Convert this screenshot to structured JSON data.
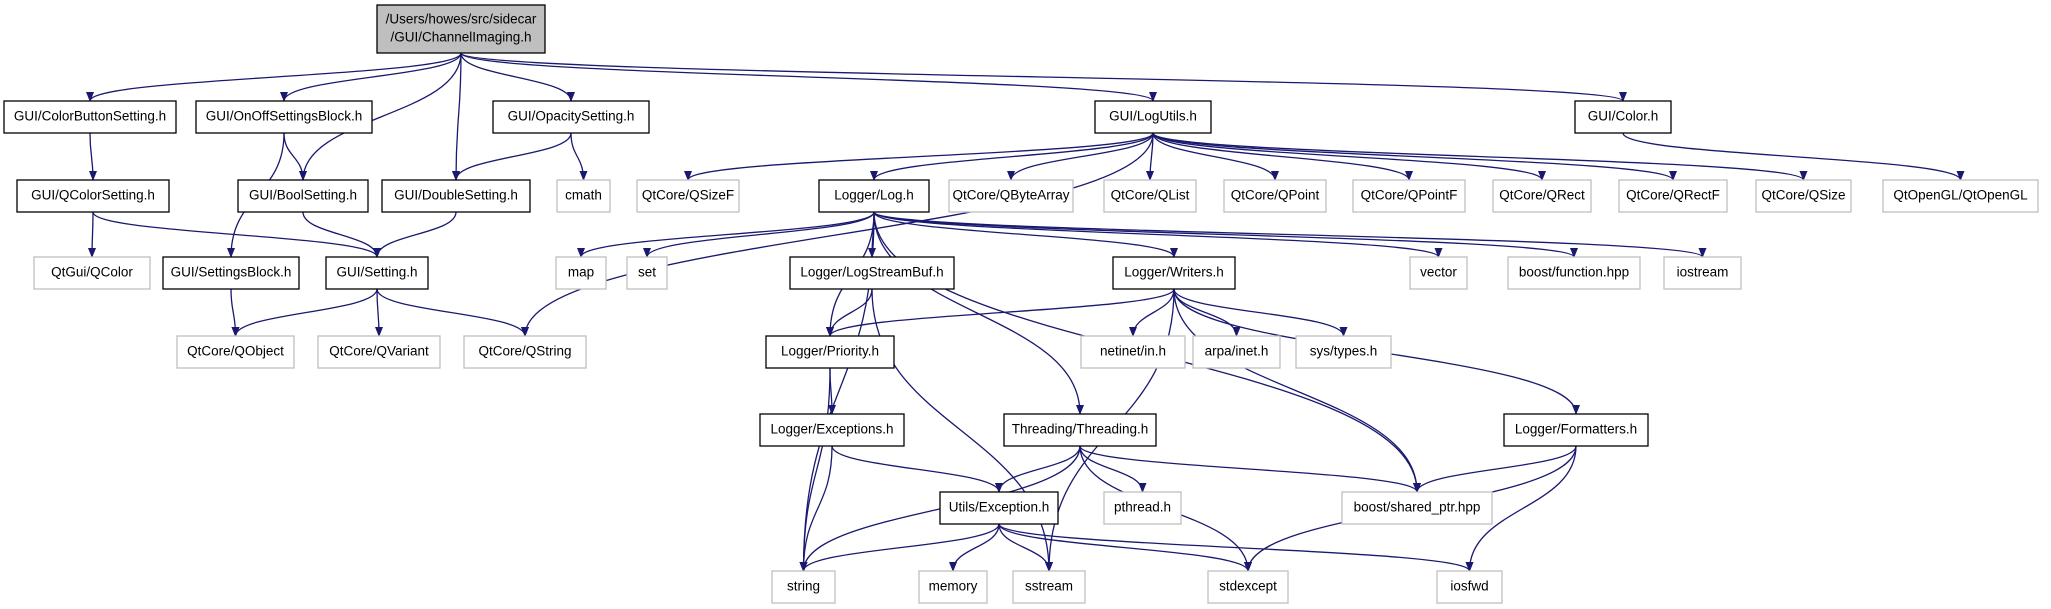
{
  "colors": {
    "edge": "#191970",
    "root_fill": "#bfbfbf",
    "node_border": "#000000",
    "external_border": "#bfbfbf",
    "background": "#ffffff"
  },
  "nodes": [
    {
      "id": "root",
      "lines": [
        "/Users/howes/src/sidecar",
        "/GUI/ChannelImaging.h"
      ],
      "kind": "root"
    },
    {
      "id": "colorbuttonsetting",
      "lines": [
        "GUI/ColorButtonSetting.h"
      ],
      "kind": "file"
    },
    {
      "id": "onoffsettingsblock",
      "lines": [
        "GUI/OnOffSettingsBlock.h"
      ],
      "kind": "file"
    },
    {
      "id": "opacitysetting",
      "lines": [
        "GUI/OpacitySetting.h"
      ],
      "kind": "file"
    },
    {
      "id": "logutils",
      "lines": [
        "GUI/LogUtils.h"
      ],
      "kind": "file"
    },
    {
      "id": "color",
      "lines": [
        "GUI/Color.h"
      ],
      "kind": "file"
    },
    {
      "id": "qcolorsetting",
      "lines": [
        "GUI/QColorSetting.h"
      ],
      "kind": "file"
    },
    {
      "id": "boolsetting",
      "lines": [
        "GUI/BoolSetting.h"
      ],
      "kind": "file"
    },
    {
      "id": "doublesetting",
      "lines": [
        "GUI/DoubleSetting.h"
      ],
      "kind": "file"
    },
    {
      "id": "cmath",
      "lines": [
        "cmath"
      ],
      "kind": "external"
    },
    {
      "id": "qsizef",
      "lines": [
        "QtCore/QSizeF"
      ],
      "kind": "external"
    },
    {
      "id": "log",
      "lines": [
        "Logger/Log.h"
      ],
      "kind": "file"
    },
    {
      "id": "qbytearray",
      "lines": [
        "QtCore/QByteArray"
      ],
      "kind": "external"
    },
    {
      "id": "qlist",
      "lines": [
        "QtCore/QList"
      ],
      "kind": "external"
    },
    {
      "id": "qpoint",
      "lines": [
        "QtCore/QPoint"
      ],
      "kind": "external"
    },
    {
      "id": "qpointf",
      "lines": [
        "QtCore/QPointF"
      ],
      "kind": "external"
    },
    {
      "id": "qrect",
      "lines": [
        "QtCore/QRect"
      ],
      "kind": "external"
    },
    {
      "id": "qrectf",
      "lines": [
        "QtCore/QRectF"
      ],
      "kind": "external"
    },
    {
      "id": "qsize",
      "lines": [
        "QtCore/QSize"
      ],
      "kind": "external"
    },
    {
      "id": "qopengl",
      "lines": [
        "QtOpenGL/QtOpenGL"
      ],
      "kind": "external"
    },
    {
      "id": "qcolor",
      "lines": [
        "QtGui/QColor"
      ],
      "kind": "external"
    },
    {
      "id": "settingsblock",
      "lines": [
        "GUI/SettingsBlock.h"
      ],
      "kind": "file"
    },
    {
      "id": "setting",
      "lines": [
        "GUI/Setting.h"
      ],
      "kind": "file"
    },
    {
      "id": "map",
      "lines": [
        "map"
      ],
      "kind": "external"
    },
    {
      "id": "set",
      "lines": [
        "set"
      ],
      "kind": "external"
    },
    {
      "id": "logstreambuf",
      "lines": [
        "Logger/LogStreamBuf.h"
      ],
      "kind": "file"
    },
    {
      "id": "writers",
      "lines": [
        "Logger/Writers.h"
      ],
      "kind": "file"
    },
    {
      "id": "vector",
      "lines": [
        "vector"
      ],
      "kind": "external"
    },
    {
      "id": "function",
      "lines": [
        "boost/function.hpp"
      ],
      "kind": "external"
    },
    {
      "id": "iostream",
      "lines": [
        "iostream"
      ],
      "kind": "external"
    },
    {
      "id": "qobject",
      "lines": [
        "QtCore/QObject"
      ],
      "kind": "external"
    },
    {
      "id": "qvariant",
      "lines": [
        "QtCore/QVariant"
      ],
      "kind": "external"
    },
    {
      "id": "qstring",
      "lines": [
        "QtCore/QString"
      ],
      "kind": "external"
    },
    {
      "id": "priority",
      "lines": [
        "Logger/Priority.h"
      ],
      "kind": "file"
    },
    {
      "id": "netinet",
      "lines": [
        "netinet/in.h"
      ],
      "kind": "external"
    },
    {
      "id": "arpainet",
      "lines": [
        "arpa/inet.h"
      ],
      "kind": "external"
    },
    {
      "id": "systypes",
      "lines": [
        "sys/types.h"
      ],
      "kind": "external"
    },
    {
      "id": "exceptions",
      "lines": [
        "Logger/Exceptions.h"
      ],
      "kind": "file"
    },
    {
      "id": "threading",
      "lines": [
        "Threading/Threading.h"
      ],
      "kind": "file"
    },
    {
      "id": "formatters",
      "lines": [
        "Logger/Formatters.h"
      ],
      "kind": "file"
    },
    {
      "id": "utilsexception",
      "lines": [
        "Utils/Exception.h"
      ],
      "kind": "file"
    },
    {
      "id": "pthread",
      "lines": [
        "pthread.h"
      ],
      "kind": "external"
    },
    {
      "id": "sharedptr",
      "lines": [
        "boost/shared_ptr.hpp"
      ],
      "kind": "external"
    },
    {
      "id": "string",
      "lines": [
        "string"
      ],
      "kind": "external"
    },
    {
      "id": "memory",
      "lines": [
        "memory"
      ],
      "kind": "external"
    },
    {
      "id": "sstream",
      "lines": [
        "sstream"
      ],
      "kind": "external"
    },
    {
      "id": "stdexcept",
      "lines": [
        "stdexcept"
      ],
      "kind": "external"
    },
    {
      "id": "iosfwd",
      "lines": [
        "iosfwd"
      ],
      "kind": "external"
    }
  ],
  "edges": [
    [
      "root",
      "colorbuttonsetting"
    ],
    [
      "root",
      "onoffsettingsblock"
    ],
    [
      "root",
      "boolsetting"
    ],
    [
      "root",
      "doublesetting"
    ],
    [
      "root",
      "opacitysetting"
    ],
    [
      "root",
      "logutils"
    ],
    [
      "root",
      "color"
    ],
    [
      "colorbuttonsetting",
      "qcolorsetting"
    ],
    [
      "qcolorsetting",
      "qcolor"
    ],
    [
      "qcolorsetting",
      "setting"
    ],
    [
      "onoffsettingsblock",
      "boolsetting"
    ],
    [
      "onoffsettingsblock",
      "settingsblock"
    ],
    [
      "opacitysetting",
      "doublesetting"
    ],
    [
      "opacitysetting",
      "cmath"
    ],
    [
      "boolsetting",
      "setting"
    ],
    [
      "doublesetting",
      "setting"
    ],
    [
      "settingsblock",
      "qobject"
    ],
    [
      "setting",
      "qobject"
    ],
    [
      "setting",
      "qvariant"
    ],
    [
      "setting",
      "qstring"
    ],
    [
      "logutils",
      "qsizef"
    ],
    [
      "logutils",
      "log"
    ],
    [
      "logutils",
      "qbytearray"
    ],
    [
      "logutils",
      "qlist"
    ],
    [
      "logutils",
      "qpoint"
    ],
    [
      "logutils",
      "qpointf"
    ],
    [
      "logutils",
      "qrect"
    ],
    [
      "logutils",
      "qrectf"
    ],
    [
      "logutils",
      "qsize"
    ],
    [
      "logutils",
      "qstring"
    ],
    [
      "color",
      "qopengl"
    ],
    [
      "log",
      "map"
    ],
    [
      "log",
      "set"
    ],
    [
      "log",
      "logstreambuf"
    ],
    [
      "log",
      "writers"
    ],
    [
      "log",
      "vector"
    ],
    [
      "log",
      "function"
    ],
    [
      "log",
      "iostream"
    ],
    [
      "log",
      "priority"
    ],
    [
      "log",
      "string"
    ],
    [
      "log",
      "threading"
    ],
    [
      "log",
      "sharedptr"
    ],
    [
      "logstreambuf",
      "priority"
    ],
    [
      "logstreambuf",
      "sstream"
    ],
    [
      "writers",
      "priority"
    ],
    [
      "writers",
      "netinet"
    ],
    [
      "writers",
      "arpainet"
    ],
    [
      "writers",
      "systypes"
    ],
    [
      "writers",
      "formatters"
    ],
    [
      "writers",
      "sharedptr"
    ],
    [
      "writers",
      "sstream"
    ],
    [
      "priority",
      "exceptions"
    ],
    [
      "priority",
      "string"
    ],
    [
      "exceptions",
      "utilsexception"
    ],
    [
      "exceptions",
      "string"
    ],
    [
      "threading",
      "utilsexception"
    ],
    [
      "threading",
      "pthread"
    ],
    [
      "threading",
      "string"
    ],
    [
      "threading",
      "stdexcept"
    ],
    [
      "threading",
      "sharedptr"
    ],
    [
      "formatters",
      "sharedptr"
    ],
    [
      "formatters",
      "stdexcept"
    ],
    [
      "formatters",
      "iosfwd"
    ],
    [
      "utilsexception",
      "string"
    ],
    [
      "utilsexception",
      "memory"
    ],
    [
      "utilsexception",
      "sstream"
    ],
    [
      "utilsexception",
      "stdexcept"
    ],
    [
      "utilsexception",
      "iosfwd"
    ]
  ]
}
